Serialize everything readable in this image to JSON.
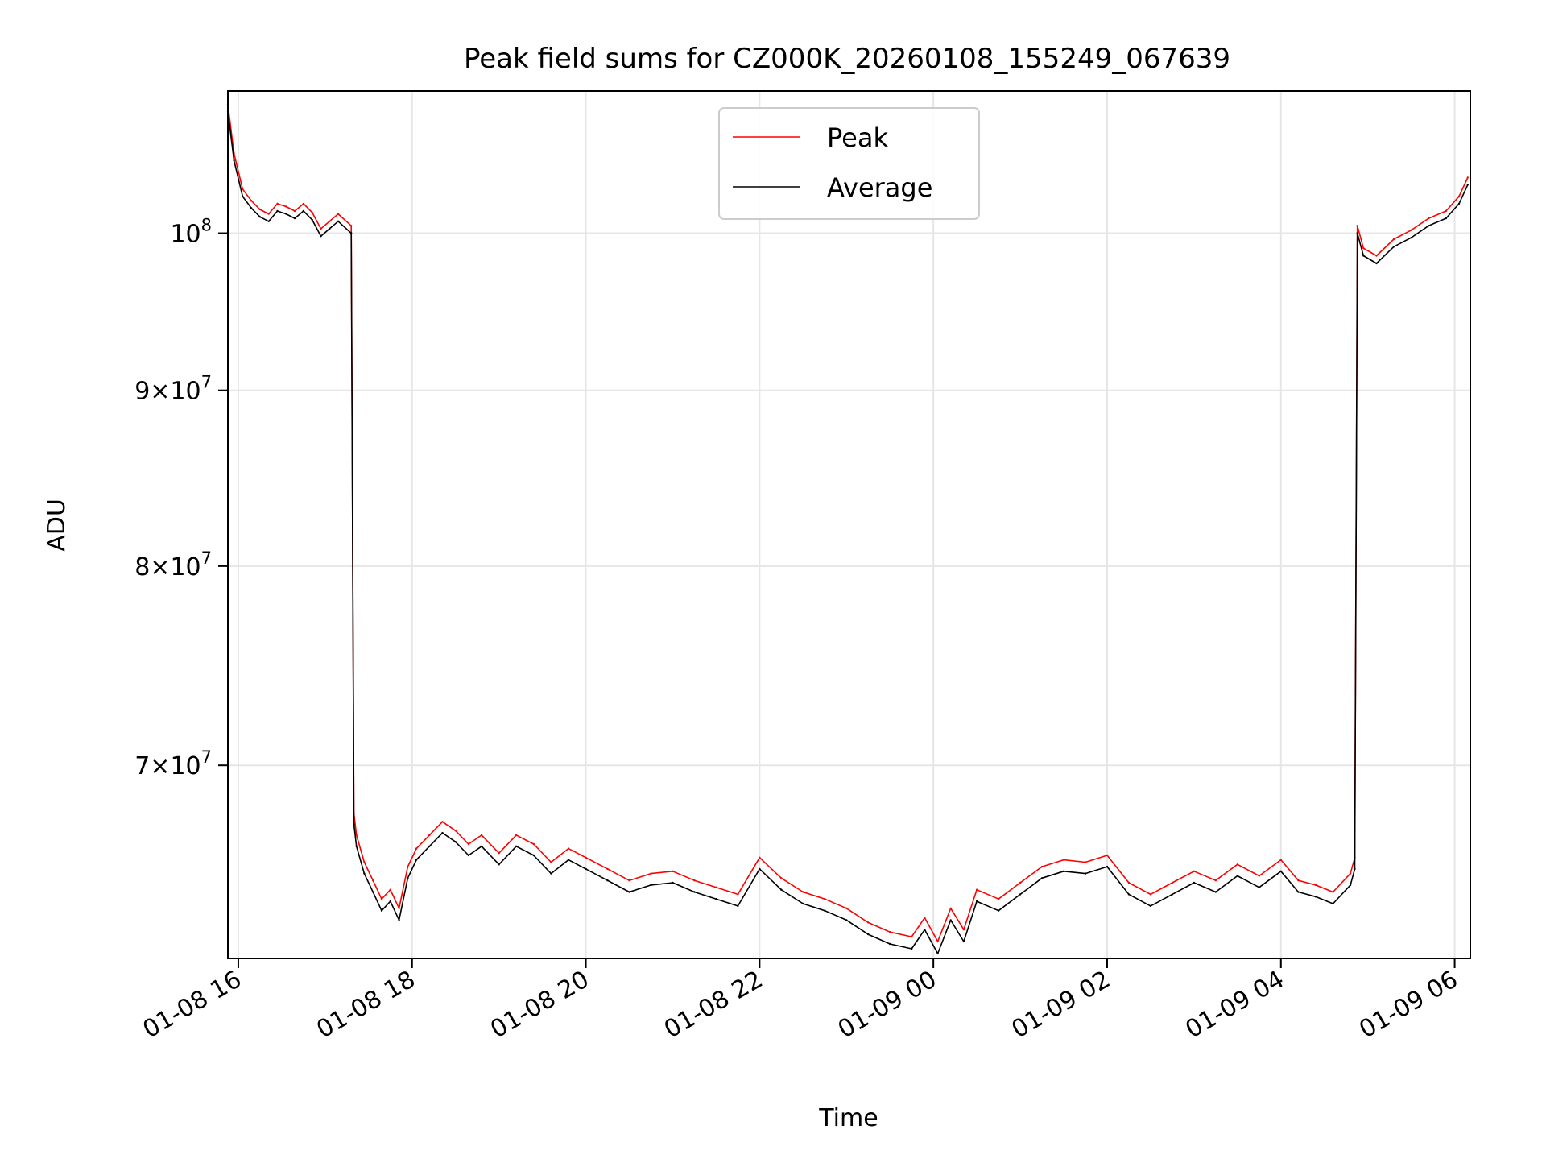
{
  "chart_data": {
    "type": "line",
    "title": "Peak field sums for CZ000K_20260108_155249_067639",
    "xlabel": "Time",
    "ylabel": "ADU",
    "yscale": "log",
    "grid": true,
    "legend_position": "top-center",
    "x_unit": "hours since 01-08 00:00",
    "xlim": [
      15.88,
      30.18
    ],
    "ylim": [
      61500000,
      110000000
    ],
    "x_ticks": [
      {
        "value": 16,
        "label": "01-08 16"
      },
      {
        "value": 18,
        "label": "01-08 18"
      },
      {
        "value": 20,
        "label": "01-08 20"
      },
      {
        "value": 22,
        "label": "01-08 22"
      },
      {
        "value": 24,
        "label": "01-09 00"
      },
      {
        "value": 26,
        "label": "01-09 02"
      },
      {
        "value": 28,
        "label": "01-09 04"
      },
      {
        "value": 30,
        "label": "01-09 06"
      }
    ],
    "y_ticks": [
      {
        "value": 100000000,
        "base": "10",
        "exp": "8"
      },
      {
        "value": 90000000,
        "base": "9×10",
        "exp": "7"
      },
      {
        "value": 80000000,
        "base": "8×10",
        "exp": "7"
      },
      {
        "value": 70000000,
        "base": "7×10",
        "exp": "7"
      }
    ],
    "x": [
      15.88,
      15.95,
      16.05,
      16.15,
      16.25,
      16.35,
      16.45,
      16.55,
      16.65,
      16.75,
      16.85,
      16.95,
      17.05,
      17.15,
      17.3,
      17.33,
      17.36,
      17.45,
      17.55,
      17.65,
      17.75,
      17.85,
      17.95,
      18.05,
      18.2,
      18.35,
      18.5,
      18.65,
      18.8,
      19.0,
      19.2,
      19.4,
      19.6,
      19.8,
      20.0,
      20.25,
      20.5,
      20.75,
      21.0,
      21.25,
      21.5,
      21.75,
      22.0,
      22.25,
      22.5,
      22.75,
      23.0,
      23.25,
      23.5,
      23.75,
      23.9,
      24.05,
      24.2,
      24.35,
      24.5,
      24.75,
      25.0,
      25.25,
      25.5,
      25.75,
      26.0,
      26.25,
      26.5,
      26.75,
      27.0,
      27.25,
      27.5,
      27.75,
      28.0,
      28.2,
      28.4,
      28.6,
      28.8,
      28.85,
      28.88,
      28.95,
      29.1,
      29.3,
      29.5,
      29.7,
      29.9,
      30.05,
      30.15
    ],
    "series": [
      {
        "name": "Peak",
        "color": "#ff0000",
        "values": [
          109000000,
          105500000,
          103000000,
          102200000,
          101600000,
          101300000,
          102000000,
          101800000,
          101500000,
          102000000,
          101400000,
          100300000,
          100800000,
          101300000,
          100500000,
          67800000,
          66800000,
          65600000,
          64800000,
          64000000,
          64400000,
          63600000,
          65400000,
          66200000,
          66800000,
          67400000,
          67000000,
          66400000,
          66800000,
          66000000,
          66800000,
          66400000,
          65600000,
          66200000,
          65800000,
          65300000,
          64800000,
          65100000,
          65200000,
          64800000,
          64500000,
          64200000,
          65800000,
          64900000,
          64300000,
          64000000,
          63600000,
          63000000,
          62600000,
          62400000,
          63200000,
          62200000,
          63600000,
          62700000,
          64400000,
          64000000,
          64700000,
          65400000,
          65700000,
          65600000,
          65900000,
          64700000,
          64200000,
          64700000,
          65200000,
          64800000,
          65500000,
          65000000,
          65700000,
          64800000,
          64600000,
          64300000,
          65100000,
          65800000,
          100500000,
          99000000,
          98500000,
          99600000,
          100200000,
          101000000,
          101500000,
          102500000,
          103800000
        ]
      },
      {
        "name": "Average",
        "color": "#000000",
        "values": [
          108500000,
          105000000,
          102500000,
          101700000,
          101100000,
          100800000,
          101500000,
          101300000,
          101000000,
          101500000,
          100900000,
          99800000,
          100300000,
          100800000,
          100000000,
          67300000,
          66300000,
          65100000,
          64300000,
          63500000,
          63900000,
          63100000,
          64900000,
          65700000,
          66300000,
          66900000,
          66500000,
          65900000,
          66300000,
          65500000,
          66300000,
          65900000,
          65100000,
          65700000,
          65300000,
          64800000,
          64300000,
          64600000,
          64700000,
          64300000,
          64000000,
          63700000,
          65300000,
          64400000,
          63800000,
          63500000,
          63100000,
          62500000,
          62100000,
          61900000,
          62700000,
          61700000,
          63100000,
          62200000,
          63900000,
          63500000,
          64200000,
          64900000,
          65200000,
          65100000,
          65400000,
          64200000,
          63700000,
          64200000,
          64700000,
          64300000,
          65000000,
          64500000,
          65200000,
          64300000,
          64100000,
          63800000,
          64600000,
          65300000,
          100000000,
          98500000,
          98000000,
          99100000,
          99700000,
          100500000,
          101000000,
          102000000,
          103300000
        ]
      }
    ]
  }
}
